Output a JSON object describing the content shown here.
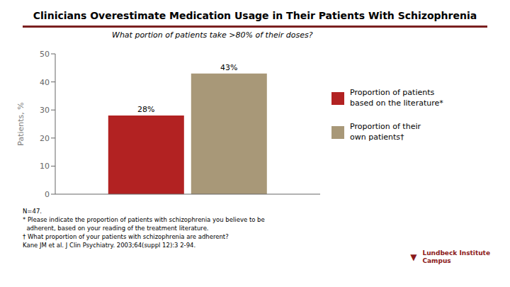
{
  "chart_data": {
    "type": "bar",
    "title": "Clinicians Overestimate Medication Usage in Their Patients With Schizophrenia",
    "subtitle": "What portion of patients take >80% of their doses?",
    "ylabel": "Patients, %",
    "categories": [
      null
    ],
    "series": [
      {
        "name": "Proportion of patients\nbased on the literature*",
        "color": "#B22222",
        "values": [
          28
        ],
        "value_labels": [
          "28%"
        ]
      },
      {
        "name": "Proportion of their\nown patients†",
        "color": "#A89878",
        "values": [
          43
        ],
        "value_labels": [
          "43%"
        ]
      }
    ],
    "ylim": [
      0,
      50
    ],
    "yticks": [
      0,
      10,
      20,
      30,
      40,
      50
    ],
    "grid": false,
    "legend": "right",
    "data_labels": true,
    "annotations": [
      "N=47.",
      "* Please indicate the proportion of patients with schizophrenia you believe to be",
      "  adherent, based on your reading of the treatment literature.",
      "† What proportion of your patients with schizophrenia are adherent?",
      "Kane JM et al. J Clin Psychiatry. 2003;64(suppl 12):3 2-94.",
      "▼",
      "Lundbeck Institute\nCampus"
    ]
  }
}
